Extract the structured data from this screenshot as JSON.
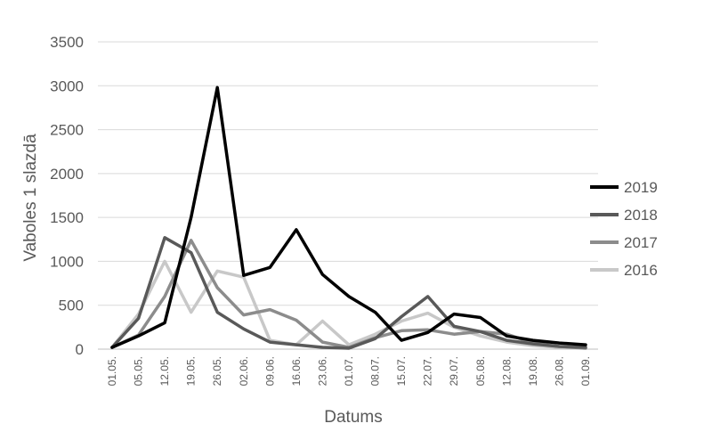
{
  "chart_data": {
    "type": "line",
    "xlabel": "Datums",
    "ylabel": "Vaboles 1 slazdā",
    "ylim": [
      0,
      3500
    ],
    "yticks": [
      0,
      500,
      1000,
      1500,
      2000,
      2500,
      3000,
      3500
    ],
    "grid": "horizontal",
    "legend": "right",
    "categories": [
      "01.05.",
      "05.05.",
      "12.05.",
      "19.05.",
      "26.05.",
      "02.06.",
      "09.06.",
      "16.06.",
      "23.06.",
      "01.07.",
      "08.07.",
      "15.07.",
      "22.07.",
      "29.07.",
      "05.08.",
      "12.08.",
      "19.08.",
      "26.08.",
      "01.09."
    ],
    "series": [
      {
        "name": "2019",
        "color": "#000000",
        "values": [
          20,
          150,
          300,
          1500,
          2980,
          840,
          930,
          1360,
          850,
          600,
          420,
          100,
          190,
          400,
          360,
          150,
          100,
          70,
          50
        ]
      },
      {
        "name": "2018",
        "color": "#595959",
        "values": [
          20,
          350,
          1270,
          1100,
          420,
          230,
          80,
          50,
          20,
          10,
          120,
          370,
          600,
          260,
          200,
          100,
          60,
          30,
          20
        ]
      },
      {
        "name": "2017",
        "color": "#8c8c8c",
        "values": [
          20,
          160,
          600,
          1240,
          700,
          390,
          450,
          330,
          80,
          20,
          130,
          210,
          220,
          170,
          200,
          170,
          70,
          30,
          10
        ]
      },
      {
        "name": "2016",
        "color": "#c8c8c8",
        "values": [
          20,
          400,
          1000,
          420,
          890,
          820,
          100,
          50,
          320,
          50,
          170,
          320,
          410,
          250,
          150,
          80,
          40,
          20,
          10
        ]
      }
    ]
  }
}
